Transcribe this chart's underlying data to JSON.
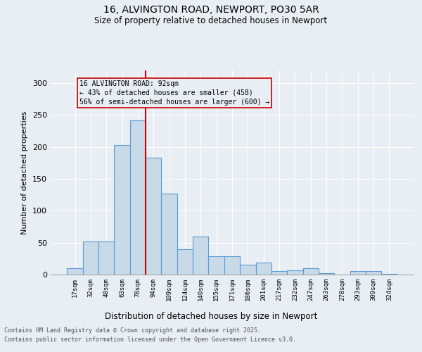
{
  "title1": "16, ALVINGTON ROAD, NEWPORT, PO30 5AR",
  "title2": "Size of property relative to detached houses in Newport",
  "xlabel": "Distribution of detached houses by size in Newport",
  "ylabel": "Number of detached properties",
  "categories": [
    "17sqm",
    "32sqm",
    "48sqm",
    "63sqm",
    "78sqm",
    "94sqm",
    "109sqm",
    "124sqm",
    "140sqm",
    "155sqm",
    "171sqm",
    "186sqm",
    "201sqm",
    "217sqm",
    "232sqm",
    "247sqm",
    "263sqm",
    "278sqm",
    "293sqm",
    "309sqm",
    "324sqm"
  ],
  "values": [
    10,
    52,
    52,
    203,
    242,
    183,
    127,
    40,
    60,
    29,
    29,
    16,
    19,
    5,
    7,
    10,
    2,
    0,
    5,
    6,
    1
  ],
  "bar_color": "#c8d9e8",
  "bar_edge_color": "#5b9bd5",
  "bg_color": "#e8eef4",
  "vline_x": 4.5,
  "vline_color": "#cc0000",
  "annotation_line1": "16 ALVINGTON ROAD: 92sqm",
  "annotation_line2": "← 43% of detached houses are smaller (458)",
  "annotation_line3": "56% of semi-detached houses are larger (600) →",
  "annotation_box_color": "#cc0000",
  "footer1": "Contains HM Land Registry data © Crown copyright and database right 2025.",
  "footer2": "Contains public sector information licensed under the Open Government Licence v3.0.",
  "ylim": [
    0,
    320
  ],
  "yticks": [
    0,
    50,
    100,
    150,
    200,
    250,
    300
  ]
}
